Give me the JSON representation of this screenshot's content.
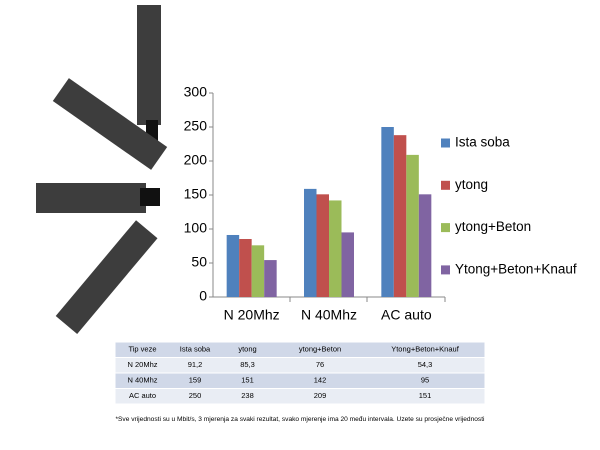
{
  "chart_data": {
    "type": "bar",
    "categories": [
      "N 20Mhz",
      "N 40Mhz",
      "AC auto"
    ],
    "series": [
      {
        "name": "Ista soba",
        "color": "#4f81bd",
        "values": [
          91.2,
          159,
          250
        ]
      },
      {
        "name": "ytong",
        "color": "#c0504d",
        "values": [
          85.3,
          151,
          238
        ]
      },
      {
        "name": "ytong+Beton",
        "color": "#9bbb59",
        "values": [
          76,
          142,
          209
        ]
      },
      {
        "name": "Ytong+Beton+Knauf",
        "color": "#8064a2",
        "values": [
          54.3,
          95,
          151
        ]
      }
    ],
    "ylim": [
      0,
      300
    ],
    "yticks": [
      0,
      50,
      100,
      150,
      200,
      250,
      300
    ],
    "grid": false,
    "legend": "right"
  },
  "table": {
    "header": [
      "Tip veze",
      "Ista soba",
      "ytong",
      "ytong+Beton",
      "Ytong+Beton+Knauf"
    ],
    "rows": [
      [
        "N 20Mhz",
        "91,2",
        "85,3",
        "76",
        "54,3"
      ],
      [
        "N 40Mhz",
        "159",
        "151",
        "142",
        "95"
      ],
      [
        "AC auto",
        "250",
        "238",
        "209",
        "151"
      ]
    ]
  },
  "footnote": "*Sve vrijednosti su u Mbit/s, 3 mjerenja za svaki rezultat, svako mjerenje ima 20 među intervala. Uzete su prosječne vrijednosti"
}
